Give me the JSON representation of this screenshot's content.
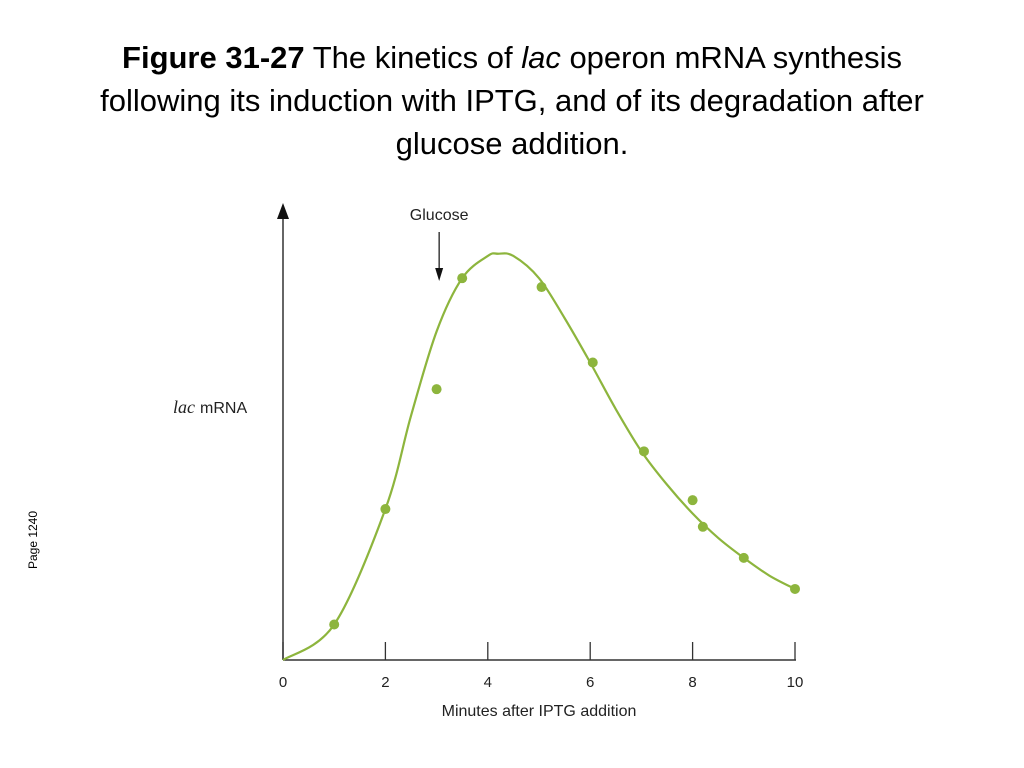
{
  "title": {
    "figure": "Figure 31-27",
    "text_before": "The kinetics of ",
    "italic": "lac",
    "text_after": " operon mRNA synthesis following its induction with IPTG, and of its degradation after glucose addition."
  },
  "page_label": "Page 1240",
  "chart_data": {
    "type": "scatter",
    "xlabel": "Minutes after IPTG addition",
    "ylabel_italic": "lac",
    "ylabel": "mRNA",
    "xlim": [
      0,
      10
    ],
    "ylim": [
      0,
      100
    ],
    "x_ticks": [
      "0",
      "2",
      "4",
      "6",
      "8",
      "10"
    ],
    "y_ticks": [],
    "grid": false,
    "legend": "none",
    "annotation": {
      "text": "Glucose",
      "x": 3.05,
      "arrow": "down"
    },
    "colors": {
      "series": "#8db53d",
      "axis": "#333333"
    },
    "points": {
      "x": [
        1,
        2,
        3,
        3.5,
        5.05,
        6.05,
        7.05,
        8.0,
        8.2,
        9.0,
        10.0
      ],
      "y": [
        8,
        34,
        61,
        86,
        84,
        67,
        47,
        36,
        30,
        23,
        16
      ]
    },
    "curve": {
      "x": [
        0,
        1,
        2,
        2.5,
        3,
        3.5,
        4,
        4.2,
        4.5,
        5,
        5.5,
        6,
        6.5,
        7,
        7.5,
        8,
        8.5,
        9,
        9.5,
        10
      ],
      "y": [
        0,
        8,
        34,
        55,
        74,
        86,
        91,
        91.5,
        91,
        86,
        77,
        67,
        56.5,
        47,
        39.5,
        33,
        27.5,
        23,
        19,
        16
      ]
    }
  }
}
